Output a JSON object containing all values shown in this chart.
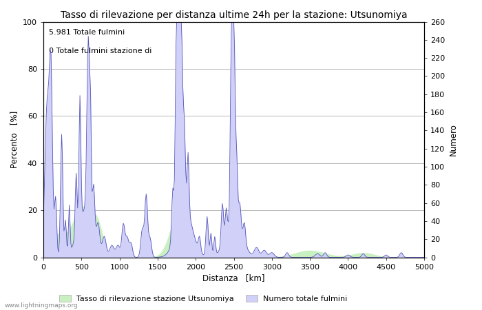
{
  "title": "Tasso di rilevazione per distanza ultime 24h per la stazione: Utsunomiya",
  "xlabel": "Distanza   [km]",
  "ylabel_left": "Percento   [%]",
  "ylabel_right": "Numero",
  "annotation_line1": "5.981 Totale fulmini",
  "annotation_line2": "0 Totale fulmini stazione di",
  "legend_label1": "Tasso di rilevazione stazione Utsunomiya",
  "legend_label2": "Numero totale fulmini",
  "xlim": [
    0,
    5000
  ],
  "ylim_left": [
    0,
    100
  ],
  "ylim_right": [
    0,
    260
  ],
  "yticks_left": [
    0,
    20,
    40,
    60,
    80,
    100
  ],
  "yticks_right": [
    0,
    20,
    40,
    60,
    80,
    100,
    120,
    140,
    160,
    180,
    200,
    220,
    240,
    260
  ],
  "xticks": [
    0,
    500,
    1000,
    1500,
    2000,
    2500,
    3000,
    3500,
    4000,
    4500,
    5000
  ],
  "fill_color_green": "#c8f0c0",
  "fill_color_blue": "#d0d0f8",
  "line_color": "#5555bb",
  "watermark": "www.lightningmaps.org",
  "title_fontsize": 10,
  "label_fontsize": 8.5,
  "tick_fontsize": 8,
  "annotation_fontsize": 8,
  "legend_fontsize": 8,
  "fig_width": 7.0,
  "fig_height": 4.5,
  "fig_dpi": 100
}
